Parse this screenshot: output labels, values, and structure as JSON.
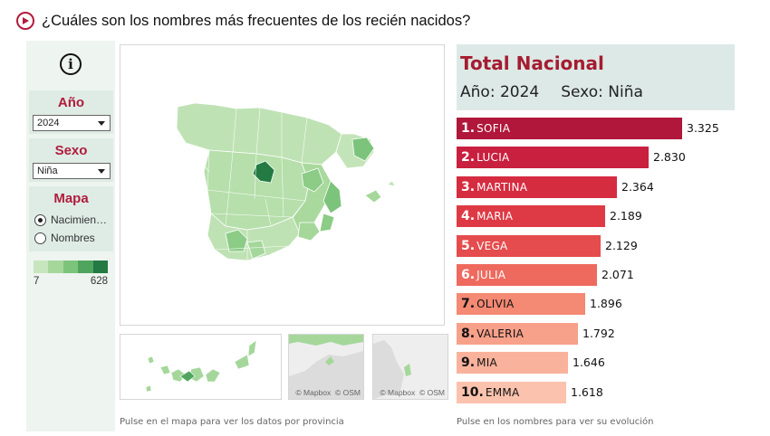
{
  "page": {
    "title": "¿Cuáles son los nombres más frecuentes de los recién nacidos?"
  },
  "filters": {
    "year": {
      "title": "Año",
      "value": "2024"
    },
    "sex": {
      "title": "Sexo",
      "value": "Niña"
    },
    "map": {
      "title": "Mapa",
      "options": [
        {
          "label": "Nacimien…",
          "selected": true
        },
        {
          "label": "Nombres",
          "selected": false
        }
      ]
    },
    "legend": {
      "min": "7",
      "max": "628",
      "colors": [
        "#c7e6bd",
        "#a5d79b",
        "#7cc47b",
        "#4fa55e",
        "#237a43"
      ]
    }
  },
  "map": {
    "hint": "Pulse en el mapa para ver los datos por provincia",
    "attribution_mapbox": "© Mapbox",
    "attribution_osm": "© OSM"
  },
  "ranking": {
    "title": "Total Nacional",
    "year_label": "Año",
    "year_value": "2024",
    "sex_label": "Sexo",
    "sex_value": "Niña",
    "hint": "Pulse en los nombres para ver su evolución",
    "max_value": 3325,
    "items": [
      {
        "rank": "1.",
        "name": "SOFIA",
        "value": 3325,
        "value_label": "3.325",
        "color": "#b0173a",
        "text_color": "#ffffff"
      },
      {
        "rank": "2.",
        "name": "LUCIA",
        "value": 2830,
        "value_label": "2.830",
        "color": "#c9203f",
        "text_color": "#ffffff"
      },
      {
        "rank": "3.",
        "name": "MARTINA",
        "value": 2364,
        "value_label": "2.364",
        "color": "#d52c40",
        "text_color": "#ffffff"
      },
      {
        "rank": "4.",
        "name": "MARIA",
        "value": 2189,
        "value_label": "2.189",
        "color": "#de3a45",
        "text_color": "#ffffff"
      },
      {
        "rank": "5.",
        "name": "VEGA",
        "value": 2129,
        "value_label": "2.129",
        "color": "#e44c4d",
        "text_color": "#ffffff"
      },
      {
        "rank": "6.",
        "name": "JULIA",
        "value": 2071,
        "value_label": "2.071",
        "color": "#ee6a5e",
        "text_color": "#ffffff"
      },
      {
        "rank": "7.",
        "name": "OLIVIA",
        "value": 1896,
        "value_label": "1.896",
        "color": "#f48974",
        "text_color": "#111111"
      },
      {
        "rank": "8.",
        "name": "VALERIA",
        "value": 1792,
        "value_label": "1.792",
        "color": "#f7a08a",
        "text_color": "#111111"
      },
      {
        "rank": "9.",
        "name": "MIA",
        "value": 1646,
        "value_label": "1.646",
        "color": "#f9b29c",
        "text_color": "#111111"
      },
      {
        "rank": "10.",
        "name": "EMMA",
        "value": 1618,
        "value_label": "1.618",
        "color": "#fbc2ad",
        "text_color": "#111111"
      }
    ]
  }
}
